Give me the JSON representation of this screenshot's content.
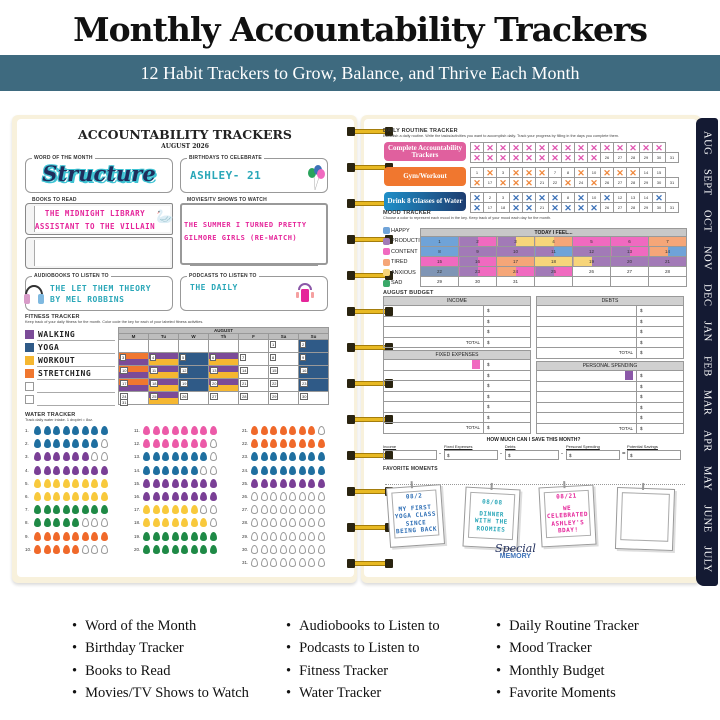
{
  "header": {
    "title": "Monthly Accountability Trackers",
    "subtitle": "12 Habit Trackers to Grow, Balance, and Thrive Each Month"
  },
  "left_page": {
    "title": "ACCOUNTABILITY TRACKERS",
    "month": "AUGUST 2026",
    "word_of_month": {
      "label": "WORD OF THE MONTH",
      "value": "Structure"
    },
    "birthdays": {
      "label": "BIRTHDAYS TO CELEBRATE",
      "value": "ASHLEY- 21"
    },
    "books": {
      "label": "BOOKS TO READ",
      "items": [
        "THE MIDNIGHT LIBRARY",
        "ASSISTANT TO THE VILLAIN"
      ]
    },
    "movies": {
      "label": "MOVIES/TV SHOWS TO WATCH",
      "items": [
        "THE SUMMER I TURNED PRETTY",
        "GILMORE GIRLS (RE-WATCH)"
      ]
    },
    "audiobooks": {
      "label": "AUDIOBOOKS TO LISTEN TO",
      "items": [
        "THE LET THEM THEORY",
        "BY MEL ROBBINS"
      ]
    },
    "podcasts": {
      "label": "PODCASTS TO LISTEN TO",
      "items": [
        "THE DAILY"
      ]
    },
    "fitness": {
      "label": "FITNESS TRACKER",
      "instructions": "Keep track of your daily fitness for the month. Color code the key for each of your labeled fitness activities.",
      "key": [
        {
          "name": "WALKING",
          "color": "#7b4b98"
        },
        {
          "name": "YOGA",
          "color": "#2f5a87"
        },
        {
          "name": "WORKOUT",
          "color": "#f5b731"
        },
        {
          "name": "STRETCHING",
          "color": "#f0772f"
        },
        {
          "name": "",
          "color": ""
        },
        {
          "name": "",
          "color": ""
        }
      ],
      "calendar_title": "AUGUST",
      "weekdays": [
        "M",
        "Tu",
        "W",
        "Th",
        "F",
        "Sa",
        "Su"
      ]
    },
    "water": {
      "label": "WATER TRACKER",
      "instructions": "Track daily water intake. 1 droplet = 8oz."
    }
  },
  "right_page": {
    "routine": {
      "label": "DAILY ROUTINE TRACKER",
      "instructions": "Establish a daily routine. Write the tasks/activities you want to accomplish daily. Track your progress by filling in the days you complete them.",
      "habits": [
        {
          "name": "Complete Accountability Trackers",
          "color": "#e0609e",
          "x_color": "#e055b0",
          "done": [
            1,
            2,
            3,
            4,
            5,
            6,
            7,
            8,
            9,
            10,
            11,
            12,
            13,
            14,
            15,
            16,
            17,
            18,
            19,
            20,
            21,
            22,
            23,
            24,
            25
          ]
        },
        {
          "name": "Gym/Workout",
          "color": "#f0772f",
          "x_color": "#f0883c",
          "done": [
            2,
            4,
            5,
            6,
            9,
            11,
            12,
            13,
            16,
            18,
            19,
            20,
            23,
            25
          ]
        },
        {
          "name": "Drink 8 Glasses of Water",
          "color": "#1f8fc8",
          "x_color": "#3d72b8",
          "done": [
            1,
            4,
            5,
            6,
            7,
            9,
            11,
            15,
            16,
            19,
            20,
            22,
            23,
            24,
            25
          ]
        }
      ]
    },
    "mood": {
      "label": "MOOD TRACKER",
      "instructions": "Choose a color to represent each mood in the key. Keep track of your mood each day for the month.",
      "header": "TODAY I FEEL...",
      "key": [
        {
          "name": "HAPPY",
          "color": "#6fa3d8"
        },
        {
          "name": "PRODUCTIVE",
          "color": "#a27ab7"
        },
        {
          "name": "CONTENT",
          "color": "#f06ac0"
        },
        {
          "name": "TIRED",
          "color": "#f5a678"
        },
        {
          "name": "ANXIOUS",
          "color": "#f7d57a"
        },
        {
          "name": "SAD",
          "color": "#3aa868"
        }
      ]
    },
    "budget": {
      "label": "AUGUST BUDGET",
      "income": "INCOME",
      "debts": "DEBTS",
      "fixed": "FIXED EXPENSES",
      "personal": "PERSONAL SPENDING",
      "total": "TOTAL",
      "currency": "$",
      "savings_title": "HOW MUCH CAN I SAVE THIS MONTH?",
      "savings_fields": [
        "Income",
        "Fixed Expenses",
        "Debts",
        "Personal Spending",
        "Potential Savings"
      ]
    },
    "moments": {
      "label": "FAVORITE MOMENTS",
      "photos": [
        {
          "date": "08/2",
          "text": "MY FIRST YOGA CLASS SINCE BEING BACK",
          "color": "#2f6fb5"
        },
        {
          "date": "08/08",
          "text": "DINNER WITH THE ROOMIES",
          "color": "#2aa7b8"
        },
        {
          "date": "08/21",
          "text": "WE CELEBRATED ASHLEY'S BDAY!",
          "color": "#e5259a"
        },
        {
          "date": "",
          "text": "",
          "color": ""
        }
      ],
      "sticker_script": "Special",
      "sticker_word": "MEMORY"
    }
  },
  "month_tabs": [
    "AUG",
    "SEPT",
    "OCT",
    "NOV",
    "DEC",
    "JAN",
    "FEB",
    "MAR",
    "APR",
    "MAY",
    "JUNE",
    "JULY"
  ],
  "features": {
    "col1": [
      "Word of the Month",
      "Birthday Tracker",
      "Books to Read",
      "Movies/TV Shows to Watch"
    ],
    "col2": [
      "Audiobooks to Listen to",
      "Podcasts to Listen to",
      "Fitness Tracker",
      "Water Tracker"
    ],
    "col3": [
      "Daily Routine Tracker",
      "Mood  Tracker",
      "Monthly Budget",
      "Favorite Moments"
    ]
  }
}
